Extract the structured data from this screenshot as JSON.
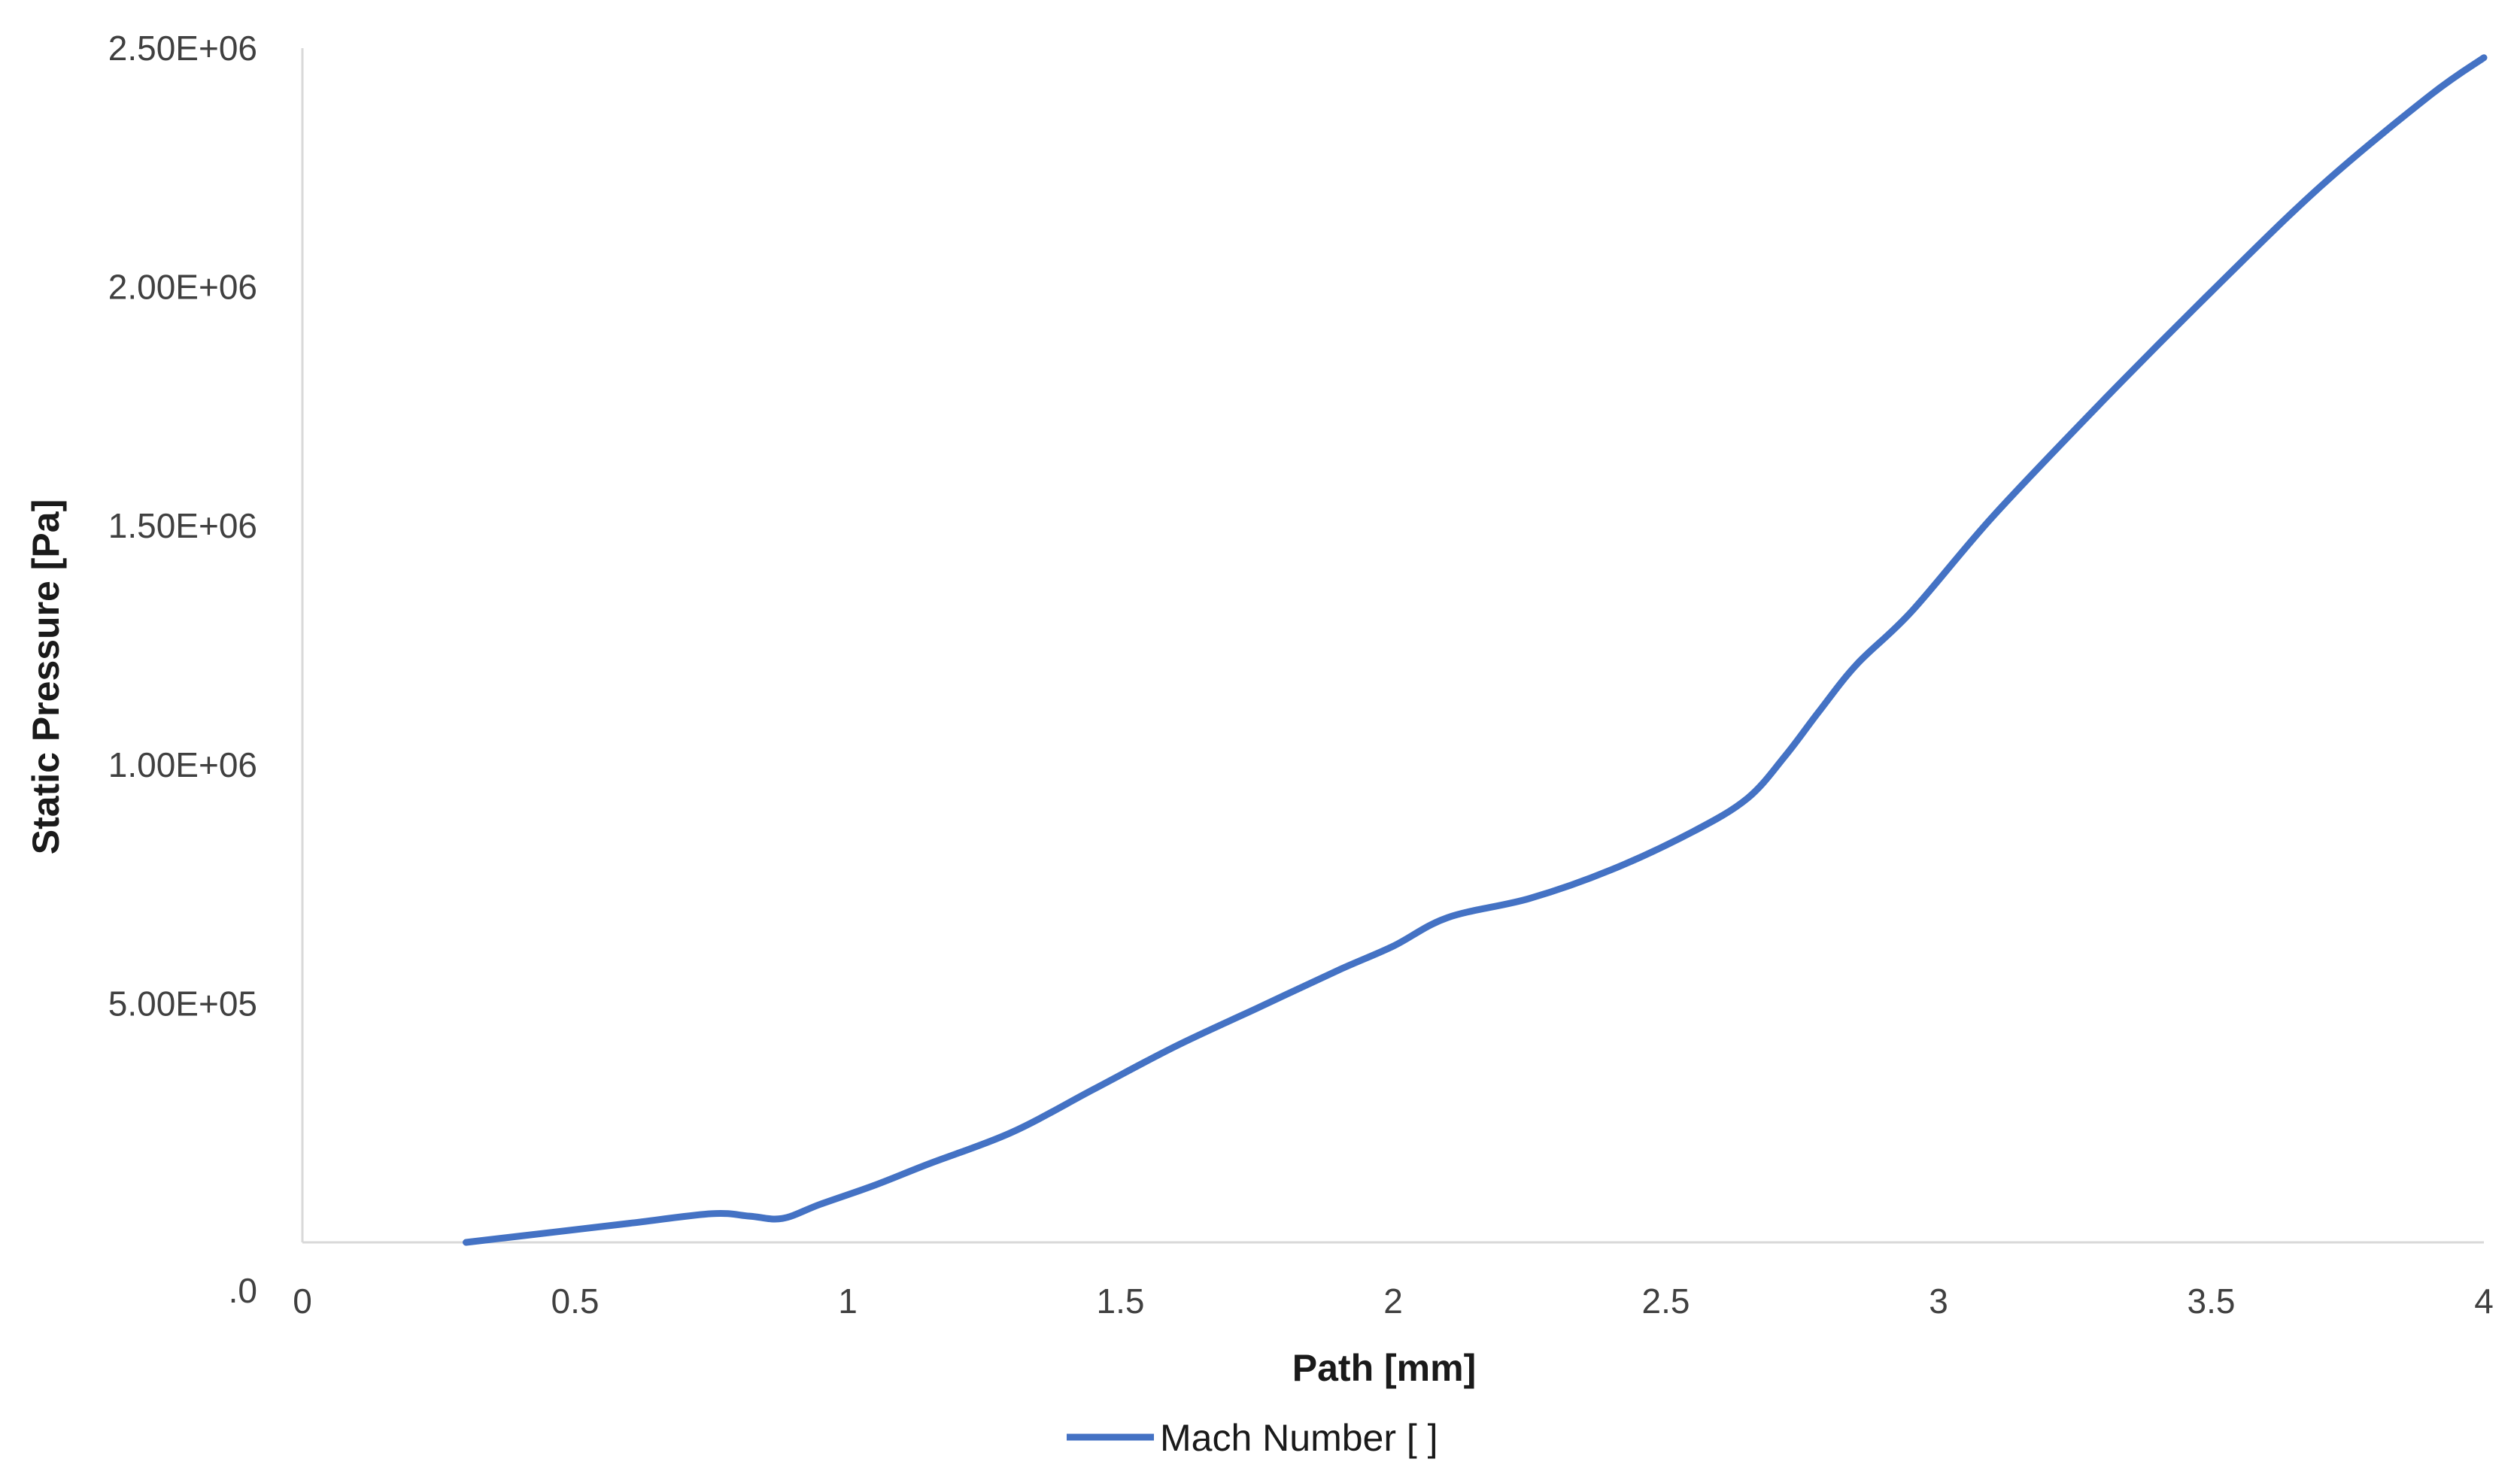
{
  "chart_data": {
    "type": "line",
    "xlabel": "Path [mm]",
    "ylabel": "Static Pressure [Pa]",
    "xlim": [
      0,
      4
    ],
    "ylim": [
      0,
      2500000
    ],
    "x_ticks": [
      "0",
      "0.5",
      "1",
      "1.5",
      "2",
      "2.5",
      "3",
      "3.5",
      "4"
    ],
    "y_ticks": [
      "5.00E+05",
      "1.00E+06",
      "1.50E+06",
      "2.00E+06",
      "2.50E+06"
    ],
    "y_origin_label": ".0",
    "grid": false,
    "legend_position": "bottom-center",
    "series": [
      {
        "name": "Mach Number [ ]",
        "color": "#4472c4",
        "x": [
          0.3,
          0.45,
          0.6,
          0.75,
          0.82,
          0.88,
          0.95,
          1.05,
          1.15,
          1.3,
          1.45,
          1.6,
          1.75,
          1.9,
          2.0,
          2.1,
          2.25,
          2.4,
          2.55,
          2.65,
          2.72,
          2.78,
          2.85,
          2.95,
          3.1,
          3.3,
          3.5,
          3.7,
          3.9,
          4.0
        ],
        "y": [
          0,
          20000,
          40000,
          60000,
          55000,
          50000,
          80000,
          120000,
          165000,
          230000,
          320000,
          410000,
          490000,
          570000,
          620000,
          680000,
          720000,
          780000,
          860000,
          930000,
          1020000,
          1110000,
          1210000,
          1320000,
          1520000,
          1760000,
          1990000,
          2210000,
          2400000,
          2480000
        ]
      }
    ]
  }
}
